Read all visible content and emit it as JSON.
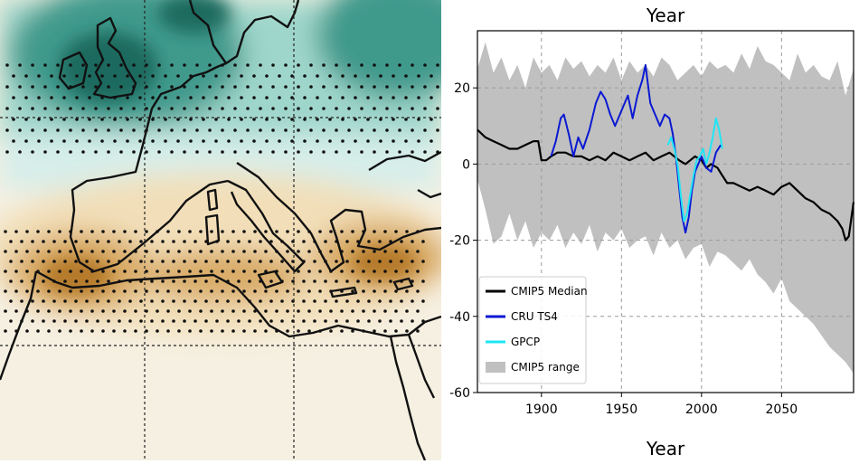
{
  "map": {
    "colors": {
      "wet_dark": "#1c6a5f",
      "wet_mid": "#3f9a8c",
      "wet_light": "#9fd6cb",
      "wet_pale": "#d7eeea",
      "neutral": "#f6f0e2",
      "dry_pale": "#f2dfb9",
      "dry_mid": "#d9ac67",
      "dry_dark": "#b57a2c",
      "coast": "#111111",
      "stipple": "#111111",
      "gridline": "#222222"
    }
  },
  "chart_data": {
    "type": "line",
    "title": "Year",
    "xlabel": "Year",
    "ylabel": "",
    "xlim": [
      1860,
      2095
    ],
    "ylim": [
      -60,
      35
    ],
    "xticks": [
      1900,
      1950,
      2000,
      2050
    ],
    "yticks": [
      20,
      0,
      -20,
      -40,
      -60
    ],
    "grid": true,
    "legend_position": "lower-left",
    "legend": [
      {
        "label": "CMIP5 Median",
        "kind": "line",
        "color": "#000000"
      },
      {
        "label": "CRU TS4",
        "kind": "line",
        "color": "#0a19d2"
      },
      {
        "label": "GPCP",
        "kind": "line",
        "color": "#1ee6f5"
      },
      {
        "label": "CMIP5 range",
        "kind": "patch",
        "color": "#c0c0c0"
      }
    ],
    "series": [
      {
        "name": "CMIP5 Median",
        "color": "#000000",
        "x": [
          1860,
          1865,
          1870,
          1875,
          1880,
          1885,
          1890,
          1895,
          1898,
          1900,
          1903,
          1906,
          1910,
          1915,
          1920,
          1925,
          1930,
          1935,
          1940,
          1945,
          1950,
          1955,
          1960,
          1965,
          1970,
          1975,
          1980,
          1983,
          1986,
          1990,
          1993,
          1996,
          2000,
          2003,
          2006,
          2010,
          2013,
          2016,
          2020,
          2025,
          2030,
          2035,
          2040,
          2045,
          2050,
          2055,
          2060,
          2065,
          2070,
          2075,
          2080,
          2085,
          2088,
          2090,
          2092,
          2095
        ],
        "y": [
          9,
          7,
          6,
          5,
          4,
          4,
          5,
          6,
          6,
          1,
          1,
          2,
          3,
          3,
          2,
          2,
          1,
          2,
          1,
          3,
          2,
          1,
          2,
          3,
          1,
          2,
          3,
          2,
          1,
          0,
          1,
          2,
          1,
          -1,
          0,
          -1,
          -3,
          -5,
          -5,
          -6,
          -7,
          -6,
          -7,
          -8,
          -6,
          -5,
          -7,
          -9,
          -10,
          -12,
          -13,
          -15,
          -17,
          -20,
          -19,
          -10
        ],
        "width": 2.2
      },
      {
        "name": "CRU TS4",
        "color": "#0a19d2",
        "x": [
          1906,
          1909,
          1912,
          1914,
          1917,
          1920,
          1923,
          1926,
          1930,
          1934,
          1937,
          1940,
          1943,
          1946,
          1950,
          1954,
          1957,
          1960,
          1963,
          1965,
          1968,
          1971,
          1974,
          1977,
          1980,
          1982,
          1984,
          1986,
          1988,
          1990,
          1992,
          1994,
          1996,
          1998,
          2000,
          2003,
          2006,
          2009,
          2012
        ],
        "y": [
          2,
          6,
          12,
          13,
          8,
          2,
          7,
          4,
          9,
          16,
          19,
          17,
          13,
          10,
          14,
          18,
          12,
          18,
          22,
          26,
          16,
          13,
          10,
          13,
          12,
          8,
          2,
          -6,
          -14,
          -18,
          -14,
          -7,
          -2,
          0,
          2,
          -1,
          -2,
          3,
          5
        ],
        "width": 2
      },
      {
        "name": "GPCP",
        "color": "#1ee6f5",
        "x": [
          1979,
          1981,
          1983,
          1985,
          1987,
          1989,
          1991,
          1993,
          1995,
          1997,
          1999,
          2001,
          2003,
          2005,
          2007,
          2009,
          2011,
          2013
        ],
        "y": [
          5,
          7,
          4,
          0,
          -8,
          -15,
          -13,
          -8,
          -3,
          1,
          2,
          4,
          0,
          3,
          7,
          12,
          9,
          4
        ],
        "width": 2
      }
    ],
    "band": {
      "name": "CMIP5 range",
      "color": "#c0c0c0",
      "x": [
        1860,
        1865,
        1870,
        1875,
        1880,
        1885,
        1890,
        1895,
        1900,
        1905,
        1910,
        1915,
        1920,
        1925,
        1930,
        1935,
        1940,
        1945,
        1950,
        1955,
        1960,
        1965,
        1970,
        1975,
        1980,
        1985,
        1990,
        1995,
        2000,
        2005,
        2010,
        2015,
        2020,
        2025,
        2030,
        2035,
        2040,
        2045,
        2050,
        2055,
        2060,
        2065,
        2070,
        2075,
        2080,
        2085,
        2090,
        2095
      ],
      "upper": [
        25,
        32,
        24,
        28,
        22,
        26,
        20,
        28,
        24,
        26,
        22,
        28,
        25,
        27,
        23,
        26,
        24,
        28,
        22,
        27,
        24,
        26,
        23,
        28,
        26,
        22,
        24,
        26,
        23,
        27,
        25,
        26,
        24,
        29,
        25,
        31,
        27,
        26,
        24,
        22,
        29,
        24,
        26,
        23,
        22,
        27,
        18,
        25
      ],
      "lower": [
        -4,
        -12,
        -21,
        -19,
        -13,
        -20,
        -15,
        -22,
        -18,
        -20,
        -16,
        -22,
        -18,
        -21,
        -16,
        -23,
        -18,
        -20,
        -17,
        -22,
        -20,
        -19,
        -24,
        -18,
        -22,
        -20,
        -25,
        -22,
        -21,
        -27,
        -23,
        -24,
        -26,
        -28,
        -25,
        -29,
        -31,
        -34,
        -30,
        -36,
        -38,
        -40,
        -42,
        -45,
        -48,
        -50,
        -52,
        -55
      ]
    }
  }
}
